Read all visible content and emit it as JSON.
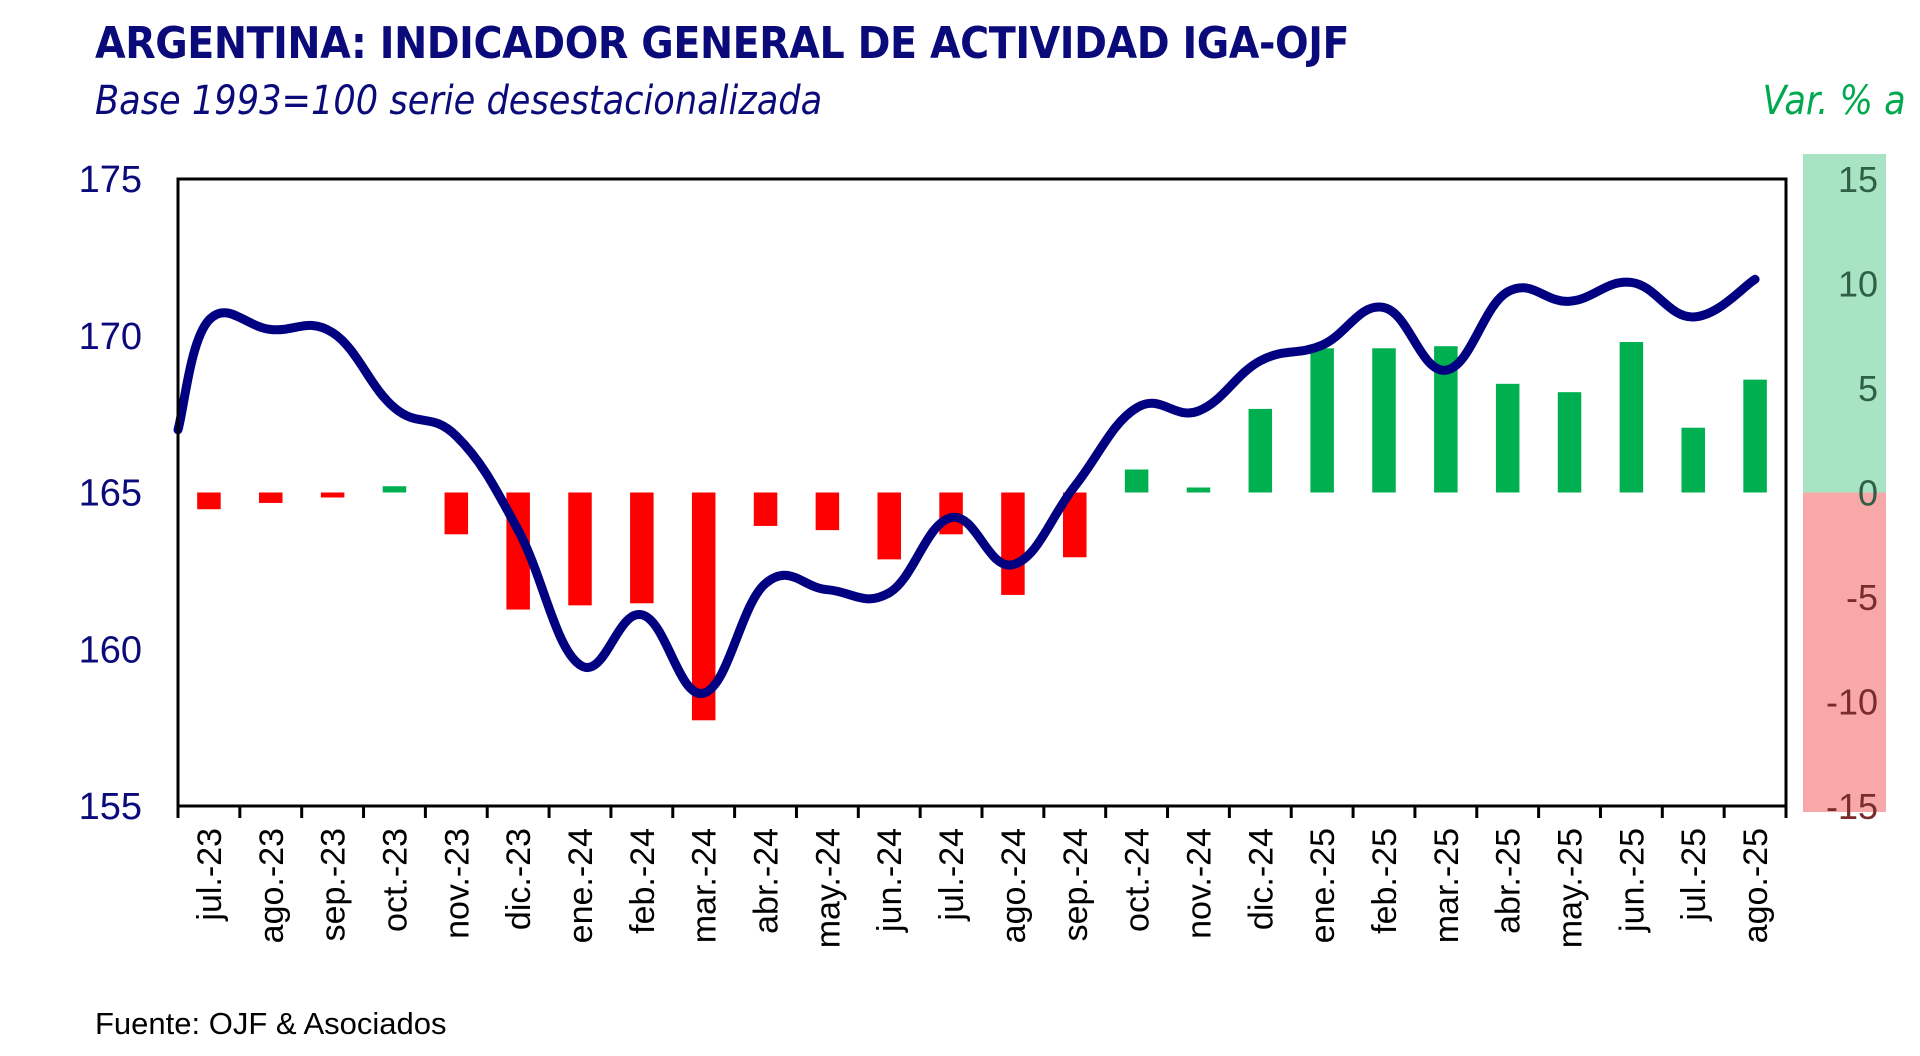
{
  "header": {
    "title": "ARGENTINA: INDICADOR GENERAL DE ACTIVIDAD IGA-OJF",
    "subtitle": "Base 1993=100 serie desestacionalizada",
    "right_axis_label": "Var. % a"
  },
  "footer": {
    "source": "Fuente: OJF & Asociados"
  },
  "colors": {
    "title": "#0a0a7a",
    "line": "#000080",
    "bar_positive": "#00b050",
    "bar_negative": "#ff0000",
    "panel_positive": "#a8e4c4",
    "panel_negative": "#f8a8a8",
    "right_label": "#00a84f"
  },
  "chart_data": {
    "type": "bar+line",
    "title": "ARGENTINA: INDICADOR GENERAL DE ACTIVIDAD IGA-OJF",
    "subtitle": "Base 1993=100 serie desestacionalizada",
    "categories": [
      "jul.-23",
      "ago.-23",
      "sep.-23",
      "oct.-23",
      "nov.-23",
      "dic.-23",
      "ene.-24",
      "feb.-24",
      "mar.-24",
      "abr.-24",
      "may.-24",
      "jun.-24",
      "jul.-24",
      "ago.-24",
      "sep.-24",
      "oct.-24",
      "nov.-24",
      "dic.-24",
      "ene.-25",
      "feb.-25",
      "mar.-25",
      "abr.-25",
      "may.-25",
      "jun.-25",
      "jul.-25",
      "ago.-25"
    ],
    "series": [
      {
        "name": "IGA-OJF (Base 1993=100, desestacionalizada)",
        "type": "line",
        "axis": "left",
        "line_start_value": 167.0,
        "values": [
          170.5,
          170.2,
          170.1,
          167.7,
          166.8,
          163.8,
          159.5,
          161.1,
          158.6,
          162.1,
          161.9,
          161.8,
          164.2,
          162.7,
          165.2,
          167.7,
          167.6,
          169.2,
          169.7,
          170.9,
          168.9,
          171.4,
          171.1,
          171.7,
          170.6,
          171.8
        ]
      },
      {
        "name": "Var. % a",
        "type": "bar",
        "axis": "right",
        "values": [
          -0.8,
          -0.5,
          -0.2,
          0.3,
          -2.0,
          -5.6,
          -5.4,
          -5.3,
          -10.9,
          -1.6,
          -1.8,
          -3.2,
          -2.0,
          -4.9,
          -3.1,
          1.1,
          0.2,
          4.0,
          6.9,
          6.9,
          7.0,
          5.2,
          4.8,
          7.2,
          3.1,
          5.4
        ]
      }
    ],
    "left_axis": {
      "ylim": [
        155,
        175
      ],
      "ticks": [
        "155",
        "160",
        "165",
        "170",
        "175"
      ]
    },
    "right_axis": {
      "label": "Var. % a",
      "ylim": [
        -15,
        15
      ],
      "ticks": [
        "-15",
        "-10",
        "-5",
        "0",
        "5",
        "10",
        "15"
      ]
    },
    "xlabel": "",
    "grid": false,
    "legend": "none",
    "source": "Fuente: OJF & Asociados"
  }
}
